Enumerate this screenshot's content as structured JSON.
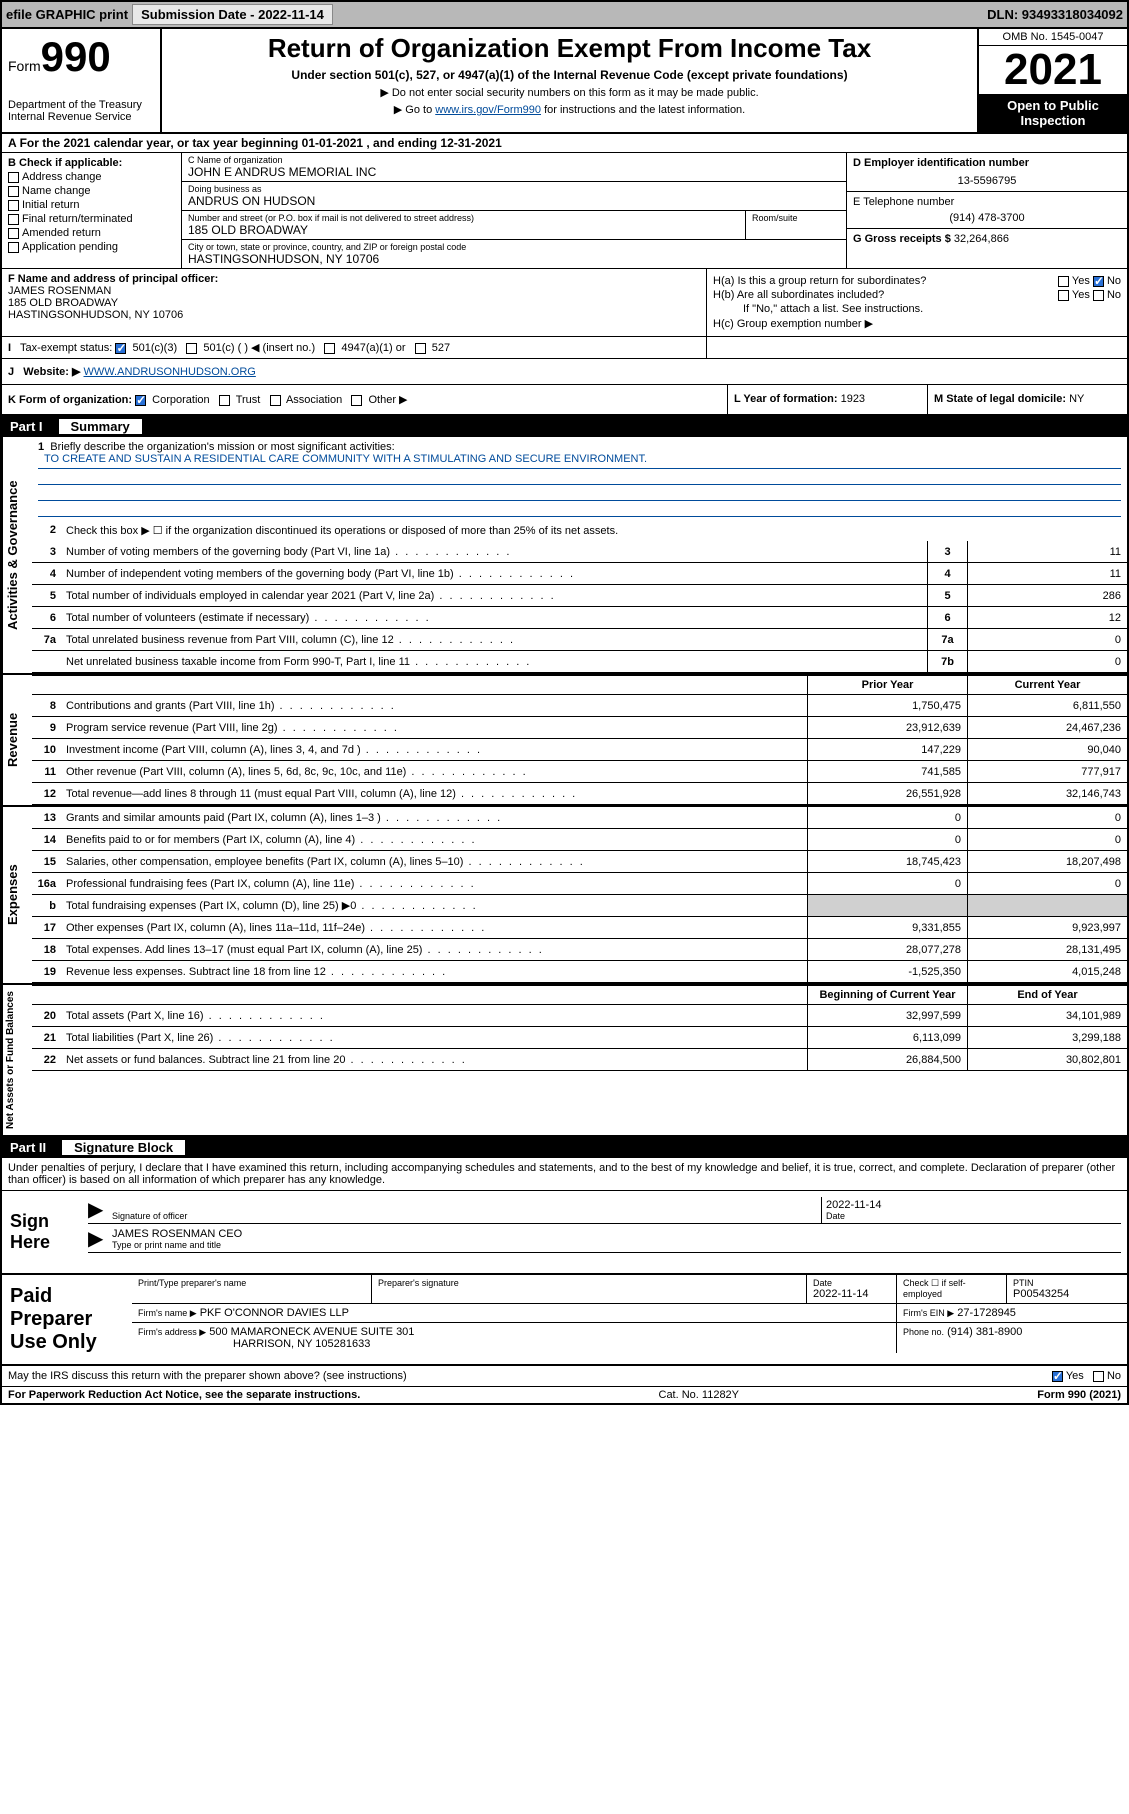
{
  "topbar": {
    "efile": "efile GRAPHIC print",
    "submission_label": "Submission Date - 2022-11-14",
    "dln_label": "DLN: 93493318034092"
  },
  "header": {
    "form_label": "Form",
    "form_num": "990",
    "title": "Return of Organization Exempt From Income Tax",
    "sub1": "Under section 501(c), 527, or 4947(a)(1) of the Internal Revenue Code (except private foundations)",
    "sub2": "Do not enter social security numbers on this form as it may be made public.",
    "sub3_pre": "Go to ",
    "sub3_link": "www.irs.gov/Form990",
    "sub3_post": " for instructions and the latest information.",
    "dept": "Department of the Treasury\nInternal Revenue Service",
    "omb": "OMB No. 1545-0047",
    "year": "2021",
    "open_public": "Open to Public Inspection"
  },
  "row_a": "For the 2021 calendar year, or tax year beginning 01-01-2021   , and ending 12-31-2021",
  "section_b": {
    "label": "B Check if applicable:",
    "items": [
      "Address change",
      "Name change",
      "Initial return",
      "Final return/terminated",
      "Amended return",
      "Application pending"
    ]
  },
  "section_c": {
    "name_lbl": "C Name of organization",
    "name": "JOHN E ANDRUS MEMORIAL INC",
    "dba_lbl": "Doing business as",
    "dba": "ANDRUS ON HUDSON",
    "street_lbl": "Number and street (or P.O. box if mail is not delivered to street address)",
    "street": "185 OLD BROADWAY",
    "room_lbl": "Room/suite",
    "room": "",
    "city_lbl": "City or town, state or province, country, and ZIP or foreign postal code",
    "city": "HASTINGSONHUDSON, NY  10706"
  },
  "section_d": {
    "ein_lbl": "D Employer identification number",
    "ein": "13-5596795",
    "phone_lbl": "E Telephone number",
    "phone": "(914) 478-3700",
    "gross_lbl": "G Gross receipts $",
    "gross": "32,264,866"
  },
  "section_f": {
    "lbl": "F Name and address of principal officer:",
    "name": "JAMES ROSENMAN",
    "street": "185 OLD BROADWAY",
    "city": "HASTINGSONHUDSON, NY  10706"
  },
  "section_h": {
    "ha": "H(a)  Is this a group return for subordinates?",
    "ha_yes": "Yes",
    "ha_no": "No",
    "hb": "H(b)  Are all subordinates included?",
    "hb_yes": "Yes",
    "hb_no": "No",
    "hb_note": "If \"No,\" attach a list. See instructions.",
    "hc": "H(c)  Group exemption number ▶"
  },
  "section_i": {
    "lbl": "Tax-exempt status:",
    "opt1": "501(c)(3)",
    "opt2": "501(c) (  ) ◀ (insert no.)",
    "opt3": "4947(a)(1) or",
    "opt4": "527"
  },
  "section_j": {
    "lbl": "Website: ▶",
    "url": "WWW.ANDRUSONHUDSON.ORG"
  },
  "section_k": {
    "lbl": "K Form of organization:",
    "opts": [
      "Corporation",
      "Trust",
      "Association",
      "Other ▶"
    ],
    "l_lbl": "L Year of formation:",
    "l_val": "1923",
    "m_lbl": "M State of legal domicile:",
    "m_val": "NY"
  },
  "part1": {
    "header_num": "Part I",
    "header_title": "Summary",
    "line1_text": "Briefly describe the organization's mission or most significant activities:",
    "mission": "TO CREATE AND SUSTAIN A RESIDENTIAL CARE COMMUNITY WITH A STIMULATING AND SECURE ENVIRONMENT.",
    "line2_text": "Check this box ▶ ☐  if the organization discontinued its operations or disposed of more than 25% of its net assets.",
    "governance_label": "Activities & Governance",
    "revenue_label": "Revenue",
    "expenses_label": "Expenses",
    "netassets_label": "Net Assets or Fund Balances",
    "prior_year": "Prior Year",
    "current_year": "Current Year",
    "begin_year": "Beginning of Current Year",
    "end_year": "End of Year",
    "lines_gov": [
      {
        "n": "3",
        "t": "Number of voting members of the governing body (Part VI, line 1a)",
        "box": "3",
        "v": "11"
      },
      {
        "n": "4",
        "t": "Number of independent voting members of the governing body (Part VI, line 1b)",
        "box": "4",
        "v": "11"
      },
      {
        "n": "5",
        "t": "Total number of individuals employed in calendar year 2021 (Part V, line 2a)",
        "box": "5",
        "v": "286"
      },
      {
        "n": "6",
        "t": "Total number of volunteers (estimate if necessary)",
        "box": "6",
        "v": "12"
      },
      {
        "n": "7a",
        "t": "Total unrelated business revenue from Part VIII, column (C), line 12",
        "box": "7a",
        "v": "0"
      },
      {
        "n": "",
        "t": "Net unrelated business taxable income from Form 990-T, Part I, line 11",
        "box": "7b",
        "v": "0"
      }
    ],
    "lines_rev": [
      {
        "n": "8",
        "t": "Contributions and grants (Part VIII, line 1h)",
        "py": "1,750,475",
        "cy": "6,811,550"
      },
      {
        "n": "9",
        "t": "Program service revenue (Part VIII, line 2g)",
        "py": "23,912,639",
        "cy": "24,467,236"
      },
      {
        "n": "10",
        "t": "Investment income (Part VIII, column (A), lines 3, 4, and 7d )",
        "py": "147,229",
        "cy": "90,040"
      },
      {
        "n": "11",
        "t": "Other revenue (Part VIII, column (A), lines 5, 6d, 8c, 9c, 10c, and 11e)",
        "py": "741,585",
        "cy": "777,917"
      },
      {
        "n": "12",
        "t": "Total revenue—add lines 8 through 11 (must equal Part VIII, column (A), line 12)",
        "py": "26,551,928",
        "cy": "32,146,743"
      }
    ],
    "lines_exp": [
      {
        "n": "13",
        "t": "Grants and similar amounts paid (Part IX, column (A), lines 1–3 )",
        "py": "0",
        "cy": "0"
      },
      {
        "n": "14",
        "t": "Benefits paid to or for members (Part IX, column (A), line 4)",
        "py": "0",
        "cy": "0"
      },
      {
        "n": "15",
        "t": "Salaries, other compensation, employee benefits (Part IX, column (A), lines 5–10)",
        "py": "18,745,423",
        "cy": "18,207,498"
      },
      {
        "n": "16a",
        "t": "Professional fundraising fees (Part IX, column (A), line 11e)",
        "py": "0",
        "cy": "0"
      },
      {
        "n": "b",
        "t": "Total fundraising expenses (Part IX, column (D), line 25) ▶0",
        "py": "",
        "cy": "",
        "grey": true
      },
      {
        "n": "17",
        "t": "Other expenses (Part IX, column (A), lines 11a–11d, 11f–24e)",
        "py": "9,331,855",
        "cy": "9,923,997"
      },
      {
        "n": "18",
        "t": "Total expenses. Add lines 13–17 (must equal Part IX, column (A), line 25)",
        "py": "28,077,278",
        "cy": "28,131,495"
      },
      {
        "n": "19",
        "t": "Revenue less expenses. Subtract line 18 from line 12",
        "py": "-1,525,350",
        "cy": "4,015,248"
      }
    ],
    "lines_net": [
      {
        "n": "20",
        "t": "Total assets (Part X, line 16)",
        "py": "32,997,599",
        "cy": "34,101,989"
      },
      {
        "n": "21",
        "t": "Total liabilities (Part X, line 26)",
        "py": "6,113,099",
        "cy": "3,299,188"
      },
      {
        "n": "22",
        "t": "Net assets or fund balances. Subtract line 21 from line 20",
        "py": "26,884,500",
        "cy": "30,802,801"
      }
    ]
  },
  "part2": {
    "header_num": "Part II",
    "header_title": "Signature Block",
    "declaration": "Under penalties of perjury, I declare that I have examined this return, including accompanying schedules and statements, and to the best of my knowledge and belief, it is true, correct, and complete. Declaration of preparer (other than officer) is based on all information of which preparer has any knowledge.",
    "sign_here": "Sign Here",
    "sig_officer_lbl": "Signature of officer",
    "sig_date_lbl": "Date",
    "sig_date": "2022-11-14",
    "officer_name": "JAMES ROSENMAN  CEO",
    "officer_lbl": "Type or print name and title",
    "paid_preparer": "Paid Preparer Use Only",
    "prep_name_lbl": "Print/Type preparer's name",
    "prep_sig_lbl": "Preparer's signature",
    "prep_date_lbl": "Date",
    "prep_date": "2022-11-14",
    "prep_check_lbl": "Check ☐ if self-employed",
    "ptin_lbl": "PTIN",
    "ptin": "P00543254",
    "firm_name_lbl": "Firm's name    ▶",
    "firm_name": "PKF O'CONNOR DAVIES LLP",
    "firm_ein_lbl": "Firm's EIN ▶",
    "firm_ein": "27-1728945",
    "firm_addr_lbl": "Firm's address ▶",
    "firm_addr1": "500 MAMARONECK AVENUE SUITE 301",
    "firm_addr2": "HARRISON, NY  105281633",
    "firm_phone_lbl": "Phone no.",
    "firm_phone": "(914) 381-8900"
  },
  "footer": {
    "discuss": "May the IRS discuss this return with the preparer shown above? (see instructions)",
    "yes": "Yes",
    "no": "No",
    "paperwork": "For Paperwork Reduction Act Notice, see the separate instructions.",
    "catno": "Cat. No. 11282Y",
    "formno": "Form 990 (2021)"
  },
  "colors": {
    "link": "#004b9b",
    "topbar_bg": "#b8b8b8",
    "check_bg": "#2970d6",
    "grey_cell": "#d0d0d0"
  }
}
